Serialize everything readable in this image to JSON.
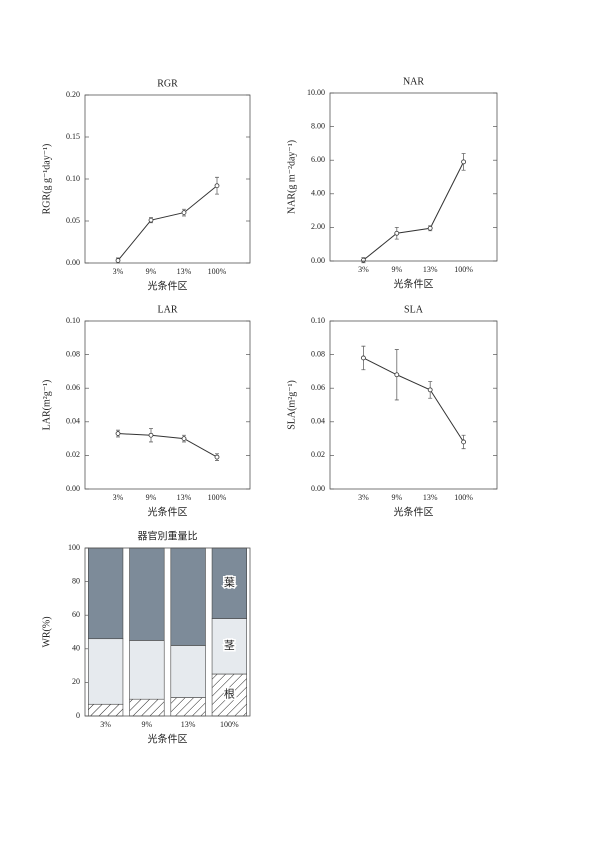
{
  "chart_data": [
    {
      "type": "line",
      "title": "RGR",
      "xlabel": "光条件区",
      "ylabel": "RGR(g g⁻¹day⁻¹)",
      "categories": [
        "3%",
        "9%",
        "13%",
        "100%"
      ],
      "values": [
        0.003,
        0.051,
        0.06,
        0.092
      ],
      "errors": [
        0.003,
        0.003,
        0.004,
        0.01
      ],
      "color": "#333333",
      "ylim": [
        0,
        0.2
      ],
      "yticks": [
        {
          "value": 0,
          "label": "0.00"
        },
        {
          "value": 0.05,
          "label": "0.05"
        },
        {
          "value": 0.1,
          "label": "0.10"
        },
        {
          "value": 0.15,
          "label": "0.15"
        },
        {
          "value": 0.2,
          "label": "0.20"
        }
      ]
    },
    {
      "type": "line",
      "title": "NAR",
      "xlabel": "光条件区",
      "ylabel": "NAR(g m⁻²day⁻¹)",
      "categories": [
        "3%",
        "9%",
        "13%",
        "100%"
      ],
      "values": [
        0.05,
        1.65,
        1.95,
        5.9
      ],
      "errors": [
        0.15,
        0.35,
        0.15,
        0.5
      ],
      "color": "#333333",
      "ylim": [
        0,
        10
      ],
      "yticks": [
        {
          "value": 0,
          "label": "0.00"
        },
        {
          "value": 2,
          "label": "2.00"
        },
        {
          "value": 4,
          "label": "4.00"
        },
        {
          "value": 6,
          "label": "6.00"
        },
        {
          "value": 8,
          "label": "8.00"
        },
        {
          "value": 10,
          "label": "10.00"
        }
      ]
    },
    {
      "type": "line",
      "title": "LAR",
      "xlabel": "光条件区",
      "ylabel": "LAR(m²g⁻¹)",
      "categories": [
        "3%",
        "9%",
        "13%",
        "100%"
      ],
      "values": [
        0.033,
        0.032,
        0.03,
        0.019
      ],
      "errors": [
        0.002,
        0.004,
        0.002,
        0.002
      ],
      "color": "#333333",
      "ylim": [
        0,
        0.1
      ],
      "yticks": [
        {
          "value": 0,
          "label": "0.00"
        },
        {
          "value": 0.02,
          "label": "0.02"
        },
        {
          "value": 0.04,
          "label": "0.04"
        },
        {
          "value": 0.06,
          "label": "0.06"
        },
        {
          "value": 0.08,
          "label": "0.08"
        },
        {
          "value": 0.1,
          "label": "0.10"
        }
      ]
    },
    {
      "type": "line",
      "title": "SLA",
      "xlabel": "光条件区",
      "ylabel": "SLA(m²g⁻¹)",
      "categories": [
        "3%",
        "9%",
        "13%",
        "100%"
      ],
      "values": [
        0.078,
        0.068,
        0.059,
        0.028
      ],
      "errors": [
        0.007,
        0.015,
        0.005,
        0.004
      ],
      "color": "#333333",
      "ylim": [
        0,
        0.1
      ],
      "yticks": [
        {
          "value": 0,
          "label": "0.00"
        },
        {
          "value": 0.02,
          "label": "0.02"
        },
        {
          "value": 0.04,
          "label": "0.04"
        },
        {
          "value": 0.06,
          "label": "0.06"
        },
        {
          "value": 0.08,
          "label": "0.08"
        },
        {
          "value": 0.1,
          "label": "0.10"
        }
      ]
    },
    {
      "type": "bar",
      "stacked": true,
      "title": "器官別重量比",
      "xlabel": "光条件区",
      "ylabel": "WR(%)",
      "categories": [
        "3%",
        "9%",
        "13%",
        "100%"
      ],
      "series": [
        {
          "name": "根",
          "color": "#ffffff",
          "hatch": true,
          "values": [
            7,
            10,
            11,
            25
          ]
        },
        {
          "name": "茎",
          "color": "#e6eaee",
          "values": [
            39,
            35,
            31,
            33
          ]
        },
        {
          "name": "葉",
          "color": "#7d8b99",
          "values": [
            54,
            55,
            58,
            42
          ]
        }
      ],
      "ylim": [
        0,
        100
      ],
      "yticks": [
        0,
        20,
        40,
        60,
        80,
        100
      ]
    }
  ]
}
